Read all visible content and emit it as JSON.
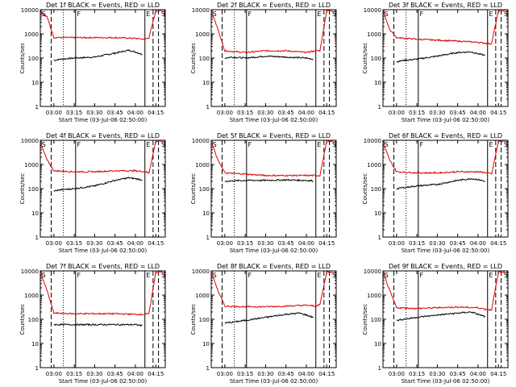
{
  "figure": {
    "ylabel": "Counts/sec",
    "xlabel": "Start Time (03-Jul-06 02:50:00)",
    "ytick_labels": [
      "1",
      "10",
      "100",
      "1000",
      "10000"
    ],
    "xtick_labels": [
      "03:00",
      "03:15",
      "03:30",
      "03:45",
      "04:00",
      "04:15"
    ],
    "colors": {
      "events": "#000000",
      "lld": "#e00000",
      "axis": "#000000"
    }
  },
  "chart_data": [
    {
      "type": "line",
      "title": "Det 1f BLACK = Events, RED = LLD",
      "xlabel": "Start Time (03-Jul-06 02:50:00)",
      "ylabel": "Counts/sec",
      "ylim": [
        1,
        10000
      ],
      "yscale": "log",
      "x_ticks": [
        "03:00",
        "03:15",
        "03:30",
        "03:45",
        "04:00",
        "04:15"
      ],
      "annotations": [
        "S",
        "F",
        "E",
        "S"
      ],
      "markers": {
        "dashed": [
          "02:58",
          "04:13",
          "04:17"
        ],
        "dotted": [
          "03:07"
        ],
        "solid": [
          "03:16",
          "04:07"
        ]
      },
      "series": [
        {
          "color": "#000000",
          "x": [
            "03:00",
            "03:05",
            "03:15",
            "03:30",
            "03:45",
            "03:55",
            "04:00",
            "04:05"
          ],
          "y": [
            80,
            90,
            100,
            110,
            160,
            210,
            180,
            140
          ]
        },
        {
          "color": "#e00000",
          "x": [
            "02:50",
            "02:55",
            "03:00",
            "03:15",
            "03:30",
            "03:45",
            "04:00",
            "04:07",
            "04:10",
            "04:15",
            "04:20"
          ],
          "y": [
            8000,
            5000,
            700,
            700,
            700,
            700,
            650,
            600,
            700,
            9000,
            9000
          ]
        }
      ]
    },
    {
      "type": "line",
      "title": "Det 2f BLACK = Events, RED = LLD",
      "xlabel": "Start Time (03-Jul-06 02:50:00)",
      "ylabel": "Counts/sec",
      "ylim": [
        1,
        10000
      ],
      "yscale": "log",
      "x_ticks": [
        "03:00",
        "03:15",
        "03:30",
        "03:45",
        "04:00",
        "04:15"
      ],
      "annotations": [
        "S",
        "F",
        "E",
        "S"
      ],
      "markers": {
        "dashed": [
          "02:58",
          "04:13",
          "04:17"
        ],
        "dotted": [
          "03:07"
        ],
        "solid": [
          "03:16",
          "04:07"
        ]
      },
      "series": [
        {
          "color": "#000000",
          "x": [
            "03:00",
            "03:05",
            "03:15",
            "03:30",
            "03:45",
            "04:00",
            "04:05"
          ],
          "y": [
            100,
            110,
            100,
            120,
            110,
            100,
            90
          ]
        },
        {
          "color": "#e00000",
          "x": [
            "02:50",
            "02:55",
            "03:00",
            "03:15",
            "03:30",
            "03:45",
            "04:00",
            "04:07",
            "04:10",
            "04:15",
            "04:20"
          ],
          "y": [
            9000,
            1500,
            200,
            170,
            200,
            200,
            170,
            200,
            200,
            9000,
            9000
          ]
        }
      ]
    },
    {
      "type": "line",
      "title": "Det 3f BLACK = Events, RED = LLD",
      "xlabel": "Start Time (03-Jul-06 02:50:00)",
      "ylabel": "Counts/sec",
      "ylim": [
        1,
        10000
      ],
      "yscale": "log",
      "x_ticks": [
        "03:00",
        "03:15",
        "03:30",
        "03:45",
        "04:00",
        "04:15"
      ],
      "annotations": [
        "S",
        "F",
        "E",
        "S"
      ],
      "markers": {
        "dashed": [
          "02:58",
          "04:13",
          "04:17"
        ],
        "dotted": [
          "03:07"
        ],
        "solid": [
          "03:16",
          "04:07"
        ]
      },
      "series": [
        {
          "color": "#000000",
          "x": [
            "03:00",
            "03:05",
            "03:15",
            "03:30",
            "03:45",
            "03:55",
            "04:00",
            "04:05"
          ],
          "y": [
            70,
            80,
            90,
            120,
            170,
            180,
            150,
            130
          ]
        },
        {
          "color": "#e00000",
          "x": [
            "02:50",
            "02:55",
            "03:00",
            "03:15",
            "03:30",
            "03:45",
            "04:00",
            "04:07",
            "04:10",
            "04:15",
            "04:20"
          ],
          "y": [
            9000,
            1500,
            700,
            600,
            550,
            500,
            450,
            400,
            400,
            9000,
            9000
          ]
        }
      ]
    },
    {
      "type": "line",
      "title": "Det 4f BLACK = Events, RED = LLD",
      "xlabel": "Start Time (03-Jul-06 02:50:00)",
      "ylabel": "Counts/sec",
      "ylim": [
        1,
        10000
      ],
      "yscale": "log",
      "x_ticks": [
        "03:00",
        "03:15",
        "03:30",
        "03:45",
        "04:00",
        "04:15"
      ],
      "annotations": [
        "S",
        "F",
        "E",
        "S"
      ],
      "markers": {
        "dashed": [
          "02:58",
          "04:13",
          "04:17"
        ],
        "dotted": [
          "03:07"
        ],
        "solid": [
          "03:16",
          "04:07"
        ]
      },
      "series": [
        {
          "color": "#000000",
          "x": [
            "03:00",
            "03:05",
            "03:15",
            "03:30",
            "03:45",
            "03:55",
            "04:00",
            "04:05"
          ],
          "y": [
            80,
            90,
            100,
            130,
            220,
            280,
            260,
            230
          ]
        },
        {
          "color": "#e00000",
          "x": [
            "02:50",
            "02:55",
            "03:00",
            "03:15",
            "03:30",
            "03:45",
            "04:00",
            "04:07",
            "04:10",
            "04:15",
            "04:20"
          ],
          "y": [
            8000,
            1500,
            550,
            500,
            500,
            550,
            550,
            500,
            450,
            9000,
            9000
          ]
        }
      ]
    },
    {
      "type": "line",
      "title": "Det 5f BLACK = Events, RED = LLD",
      "xlabel": "Start Time (03-Jul-06 02:50:00)",
      "ylabel": "Counts/sec",
      "ylim": [
        1,
        10000
      ],
      "yscale": "log",
      "x_ticks": [
        "03:00",
        "03:15",
        "03:30",
        "03:45",
        "04:00",
        "04:15"
      ],
      "annotations": [
        "S",
        "F",
        "E",
        "S"
      ],
      "markers": {
        "dashed": [
          "02:58",
          "04:13",
          "04:17"
        ],
        "dotted": [
          "03:07"
        ],
        "solid": [
          "03:16",
          "04:07"
        ]
      },
      "series": [
        {
          "color": "#000000",
          "x": [
            "03:00",
            "03:05",
            "03:15",
            "03:30",
            "03:45",
            "04:00",
            "04:05"
          ],
          "y": [
            200,
            210,
            220,
            220,
            230,
            220,
            210
          ]
        },
        {
          "color": "#e00000",
          "x": [
            "02:50",
            "02:55",
            "03:00",
            "03:15",
            "03:30",
            "03:45",
            "04:00",
            "04:07",
            "04:10",
            "04:15",
            "04:20"
          ],
          "y": [
            9000,
            1500,
            450,
            400,
            350,
            350,
            350,
            350,
            350,
            9000,
            9000
          ]
        }
      ]
    },
    {
      "type": "line",
      "title": "Det 6f BLACK = Events, RED = LLD",
      "xlabel": "Start Time (03-Jul-06 02:50:00)",
      "ylabel": "Counts/sec",
      "ylim": [
        1,
        10000
      ],
      "yscale": "log",
      "x_ticks": [
        "03:00",
        "03:15",
        "03:30",
        "03:45",
        "04:00",
        "04:15"
      ],
      "annotations": [
        "S",
        "F",
        "E",
        "S"
      ],
      "markers": {
        "dashed": [
          "02:58",
          "04:13",
          "04:17"
        ],
        "dotted": [
          "03:07"
        ],
        "solid": [
          "03:16",
          "04:07"
        ]
      },
      "series": [
        {
          "color": "#000000",
          "x": [
            "03:00",
            "03:05",
            "03:15",
            "03:30",
            "03:45",
            "03:55",
            "04:00",
            "04:05"
          ],
          "y": [
            100,
            110,
            130,
            150,
            220,
            260,
            240,
            200
          ]
        },
        {
          "color": "#e00000",
          "x": [
            "02:50",
            "02:55",
            "03:00",
            "03:15",
            "03:30",
            "03:45",
            "04:00",
            "04:07",
            "04:10",
            "04:15",
            "04:20"
          ],
          "y": [
            8000,
            1500,
            500,
            450,
            450,
            500,
            500,
            450,
            400,
            9000,
            9000
          ]
        }
      ]
    },
    {
      "type": "line",
      "title": "Det 7f BLACK = Events, RED = LLD",
      "xlabel": "Start Time (03-Jul-06 02:50:00)",
      "ylabel": "Counts/sec",
      "ylim": [
        1,
        10000
      ],
      "yscale": "log",
      "x_ticks": [
        "03:00",
        "03:15",
        "03:30",
        "03:45",
        "04:00",
        "04:15"
      ],
      "annotations": [
        "S",
        "F",
        "E",
        "S"
      ],
      "markers": {
        "dashed": [
          "02:58",
          "04:13",
          "04:17"
        ],
        "dotted": [
          "03:07"
        ],
        "solid": [
          "03:16",
          "04:07"
        ]
      },
      "series": [
        {
          "color": "#000000",
          "x": [
            "03:00",
            "03:05",
            "03:15",
            "03:30",
            "03:45",
            "04:00",
            "04:05"
          ],
          "y": [
            60,
            60,
            60,
            60,
            60,
            60,
            55
          ]
        },
        {
          "color": "#e00000",
          "x": [
            "02:50",
            "02:55",
            "03:00",
            "03:15",
            "03:30",
            "03:45",
            "04:00",
            "04:07",
            "04:10",
            "04:15",
            "04:20"
          ],
          "y": [
            9000,
            1500,
            180,
            170,
            170,
            170,
            160,
            160,
            170,
            9000,
            9000
          ]
        }
      ]
    },
    {
      "type": "line",
      "title": "Det 8f BLACK = Events, RED = LLD",
      "xlabel": "Start Time (03-Jul-06 02:50:00)",
      "ylabel": "Counts/sec",
      "ylim": [
        1,
        10000
      ],
      "yscale": "log",
      "x_ticks": [
        "03:00",
        "03:15",
        "03:30",
        "03:45",
        "04:00",
        "04:15"
      ],
      "annotations": [
        "S",
        "F",
        "E",
        "S"
      ],
      "markers": {
        "dashed": [
          "02:58",
          "04:13",
          "04:17"
        ],
        "dotted": [
          "03:07"
        ],
        "solid": [
          "03:16",
          "04:07"
        ]
      },
      "series": [
        {
          "color": "#000000",
          "x": [
            "03:00",
            "03:05",
            "03:15",
            "03:30",
            "03:45",
            "03:55",
            "04:00",
            "04:05"
          ],
          "y": [
            70,
            75,
            90,
            120,
            160,
            180,
            150,
            120
          ]
        },
        {
          "color": "#e00000",
          "x": [
            "02:50",
            "02:55",
            "03:00",
            "03:15",
            "03:30",
            "03:45",
            "04:00",
            "04:07",
            "04:10",
            "04:15",
            "04:20"
          ],
          "y": [
            9000,
            1500,
            350,
            330,
            330,
            350,
            380,
            350,
            400,
            9000,
            9000
          ]
        }
      ]
    },
    {
      "type": "line",
      "title": "Det 9f BLACK = Events, RED = LLD",
      "xlabel": "Start Time (03-Jul-06 02:50:00)",
      "ylabel": "Counts/sec",
      "ylim": [
        1,
        10000
      ],
      "yscale": "log",
      "x_ticks": [
        "03:00",
        "03:15",
        "03:30",
        "03:45",
        "04:00",
        "04:15"
      ],
      "annotations": [
        "S",
        "F",
        "E",
        "S"
      ],
      "markers": {
        "dashed": [
          "02:58",
          "04:13",
          "04:17"
        ],
        "dotted": [
          "03:07"
        ],
        "solid": [
          "03:16",
          "04:07"
        ]
      },
      "series": [
        {
          "color": "#000000",
          "x": [
            "03:00",
            "03:05",
            "03:15",
            "03:30",
            "03:45",
            "03:55",
            "04:00",
            "04:05"
          ],
          "y": [
            90,
            100,
            120,
            150,
            180,
            200,
            160,
            130
          ]
        },
        {
          "color": "#e00000",
          "x": [
            "02:50",
            "02:55",
            "03:00",
            "03:15",
            "03:30",
            "03:45",
            "04:00",
            "04:07",
            "04:10",
            "04:15",
            "04:20"
          ],
          "y": [
            9000,
            1500,
            300,
            280,
            300,
            320,
            300,
            250,
            250,
            9000,
            9000
          ]
        }
      ]
    }
  ]
}
